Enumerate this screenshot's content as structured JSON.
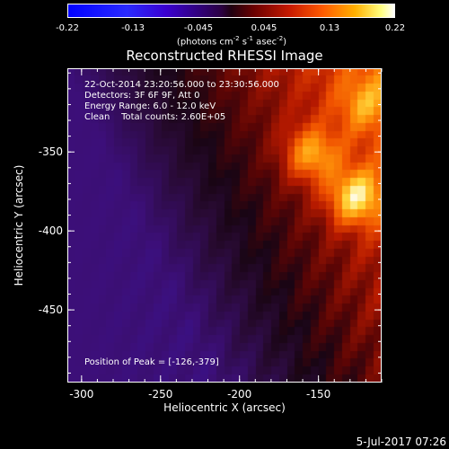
{
  "colorbar": {
    "ticks": [
      "-0.22",
      "-0.13",
      "-0.045",
      "0.045",
      "0.13",
      "0.22"
    ],
    "unit_prefix": "(photons cm",
    "unit_exp1": "-2",
    "unit_mid1": " s",
    "unit_exp2": "-1",
    "unit_mid2": " asec",
    "unit_exp3": "-2",
    "unit_suffix": ")"
  },
  "chart_data": {
    "type": "heatmap",
    "title": "Reconstructed RHESSI Image",
    "xlabel": "Heliocentric X (arcsec)",
    "ylabel": "Heliocentric Y (arcsec)",
    "xlim": [
      -309,
      -110
    ],
    "ylim": [
      -496,
      -297
    ],
    "x_ticks": [
      "-300",
      "-250",
      "-200",
      "-150"
    ],
    "y_ticks": [
      "-350",
      "-400",
      "-450"
    ],
    "color_range": [
      -0.22,
      0.22
    ],
    "colormap": "blue-purple-black-red-yellow-white",
    "peaks": [
      {
        "x": -126,
        "y": -379,
        "value": 0.22
      },
      {
        "x": -154,
        "y": -352,
        "value": 0.19
      },
      {
        "x": -121,
        "y": -320,
        "value": 0.15
      }
    ],
    "annotations": [
      "22-Oct-2014 23:20:56.000 to 23:30:56.000",
      "Detectors: 3F 6F 9F, Att 0",
      "Energy Range: 6.0 - 12.0 keV",
      "Clean    Total counts: 2.60E+05"
    ],
    "peak_label": "Position of Peak = [-126,-379]"
  },
  "footer": {
    "date": "5-Jul-2017 07:26"
  }
}
